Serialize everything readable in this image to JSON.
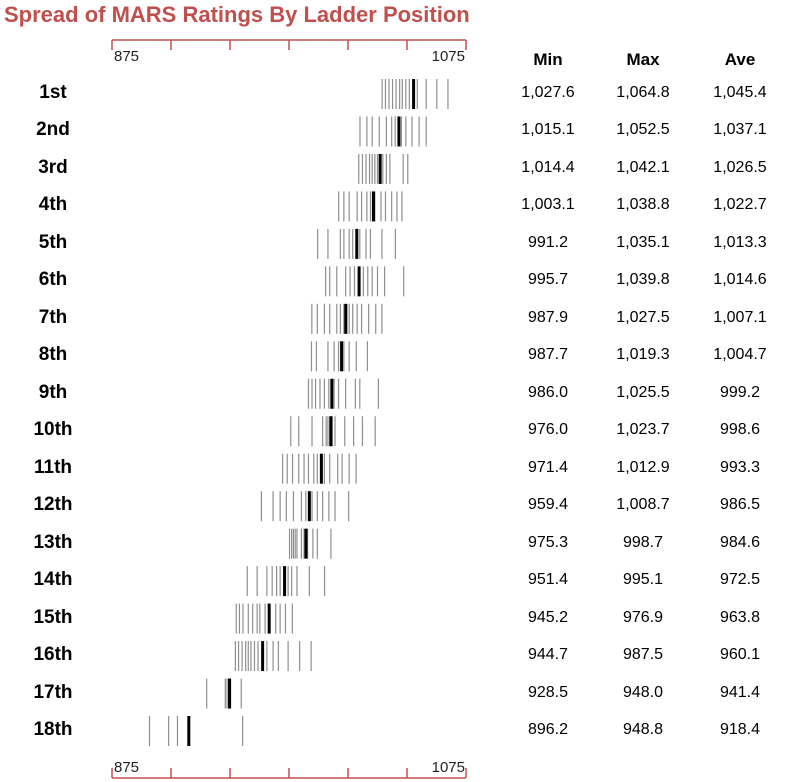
{
  "title": "Spread of MARS Ratings By Ladder Position",
  "columns": [
    "Min",
    "Max",
    "Ave"
  ],
  "chart_data": {
    "type": "strip",
    "title": "Spread of MARS Ratings By Ladder Position",
    "xlim": [
      875,
      1075
    ],
    "x_tick_labels": [
      "875",
      "1075"
    ],
    "x_ticks_count": 7,
    "rows": [
      {
        "position": "1st",
        "min": "1,027.6",
        "max": "1,064.8",
        "ave": "1,045.4",
        "average": 1045.4,
        "values": [
          1027.6,
          1029.5,
          1031.5,
          1033.5,
          1035.5,
          1037.5,
          1039.0,
          1041.0,
          1043.0,
          1045.0,
          1047.5,
          1052.5,
          1058.5,
          1064.8
        ]
      },
      {
        "position": "2nd",
        "min": "1,015.1",
        "max": "1,052.5",
        "ave": "1,037.1",
        "average": 1037.1,
        "values": [
          1015.1,
          1019.0,
          1022.0,
          1026.0,
          1030.0,
          1033.0,
          1035.0,
          1038.5,
          1041.0,
          1044.5,
          1048.5,
          1052.5
        ]
      },
      {
        "position": "3rd",
        "min": "1,014.4",
        "max": "1,042.1",
        "ave": "1,026.5",
        "average": 1026.5,
        "values": [
          1014.4,
          1016.5,
          1018.5,
          1020.5,
          1022.0,
          1023.5,
          1025.0,
          1028.0,
          1030.0,
          1032.0,
          1039.5,
          1042.1
        ]
      },
      {
        "position": "4th",
        "min": "1,003.1",
        "max": "1,038.8",
        "ave": "1,022.7",
        "average": 1022.7,
        "values": [
          1003.1,
          1006.0,
          1009.0,
          1013.5,
          1016.0,
          1019.0,
          1021.0,
          1023.5,
          1027.0,
          1029.5,
          1033.0,
          1036.0,
          1038.8
        ]
      },
      {
        "position": "5th",
        "min": "991.2",
        "max": "1,035.1",
        "ave": "1,013.3",
        "average": 1013.3,
        "values": [
          991.2,
          997.0,
          1004.0,
          1006.0,
          1009.0,
          1011.0,
          1015.0,
          1018.5,
          1021.0,
          1027.5,
          1035.1
        ]
      },
      {
        "position": "6th",
        "min": "995.7",
        "max": "1,039.8",
        "ave": "1,014.6",
        "average": 1014.6,
        "values": [
          995.7,
          998.0,
          1002.0,
          1007.0,
          1009.5,
          1012.0,
          1017.0,
          1019.5,
          1022.0,
          1025.0,
          1029.0,
          1039.8
        ]
      },
      {
        "position": "7th",
        "min": "987.9",
        "max": "1,027.5",
        "ave": "1,007.1",
        "average": 1007.1,
        "values": [
          987.9,
          991.0,
          995.0,
          998.0,
          1002.0,
          1004.0,
          1006.0,
          1009.0,
          1011.0,
          1013.5,
          1016.0,
          1020.0,
          1024.0,
          1027.5
        ]
      },
      {
        "position": "8th",
        "min": "987.7",
        "max": "1,019.3",
        "ave": "1,004.7",
        "average": 1004.7,
        "values": [
          987.7,
          990.5,
          997.0,
          1000.5,
          1003.0,
          1006.0,
          1009.0,
          1013.0,
          1019.3
        ]
      },
      {
        "position": "9th",
        "min": "986.0",
        "max": "1,025.5",
        "ave": "999.2",
        "average": 999.2,
        "values": [
          986.0,
          988.0,
          990.0,
          992.5,
          995.0,
          997.5,
          1000.5,
          1003.0,
          1007.0,
          1012.5,
          1015.0,
          1025.5
        ]
      },
      {
        "position": "10th",
        "min": "976.0",
        "max": "1,023.7",
        "ave": "998.6",
        "average": 998.6,
        "values": [
          976.0,
          980.5,
          988.0,
          994.0,
          996.0,
          997.0,
          999.5,
          1001.0,
          1006.5,
          1011.5,
          1016.5,
          1023.7
        ]
      },
      {
        "position": "11th",
        "min": "971.4",
        "max": "1,012.9",
        "ave": "993.3",
        "average": 993.3,
        "values": [
          971.4,
          974.0,
          977.0,
          980.5,
          983.5,
          986.0,
          989.0,
          991.0,
          995.0,
          998.0,
          1002.5,
          1005.0,
          1009.0,
          1012.9
        ]
      },
      {
        "position": "12th",
        "min": "959.4",
        "max": "1,008.7",
        "ave": "986.5",
        "average": 986.5,
        "values": [
          959.4,
          966.0,
          970.0,
          973.5,
          977.5,
          982.0,
          984.5,
          988.0,
          991.0,
          994.0,
          997.5,
          1001.0,
          1008.7
        ]
      },
      {
        "position": "13th",
        "min": "975.3",
        "max": "998.7",
        "ave": "984.6",
        "average": 984.6,
        "values": [
          975.3,
          976.5,
          977.5,
          978.5,
          979.5,
          982.0,
          983.5,
          985.5,
          988.5,
          991.0,
          998.7
        ]
      },
      {
        "position": "14th",
        "min": "951.4",
        "max": "995.1",
        "ave": "972.5",
        "average": 972.5,
        "values": [
          951.4,
          957.0,
          962.5,
          965.5,
          968.0,
          970.0,
          974.5,
          976.5,
          979.5,
          986.5,
          995.1
        ]
      },
      {
        "position": "15th",
        "min": "945.2",
        "max": "976.9",
        "ave": "963.8",
        "average": 963.8,
        "values": [
          945.2,
          947.0,
          949.0,
          952.0,
          954.5,
          957.0,
          958.5,
          961.5,
          964.0,
          967.5,
          970.0,
          973.0,
          976.9
        ]
      },
      {
        "position": "16th",
        "min": "944.7",
        "max": "987.5",
        "ave": "960.1",
        "average": 960.1,
        "values": [
          944.7,
          946.5,
          948.5,
          950.5,
          952.0,
          953.5,
          955.5,
          957.5,
          962.5,
          966.0,
          969.0,
          974.5,
          981.0,
          987.5
        ]
      },
      {
        "position": "17th",
        "min": "928.5",
        "max": "948.0",
        "ave": "941.4",
        "average": 941.4,
        "values": [
          928.5,
          939.0,
          940.0,
          942.0,
          948.0
        ]
      },
      {
        "position": "18th",
        "min": "896.2",
        "max": "948.8",
        "ave": "918.4",
        "average": 918.4,
        "values": [
          896.2,
          907.0,
          912.0,
          948.8
        ]
      }
    ]
  }
}
